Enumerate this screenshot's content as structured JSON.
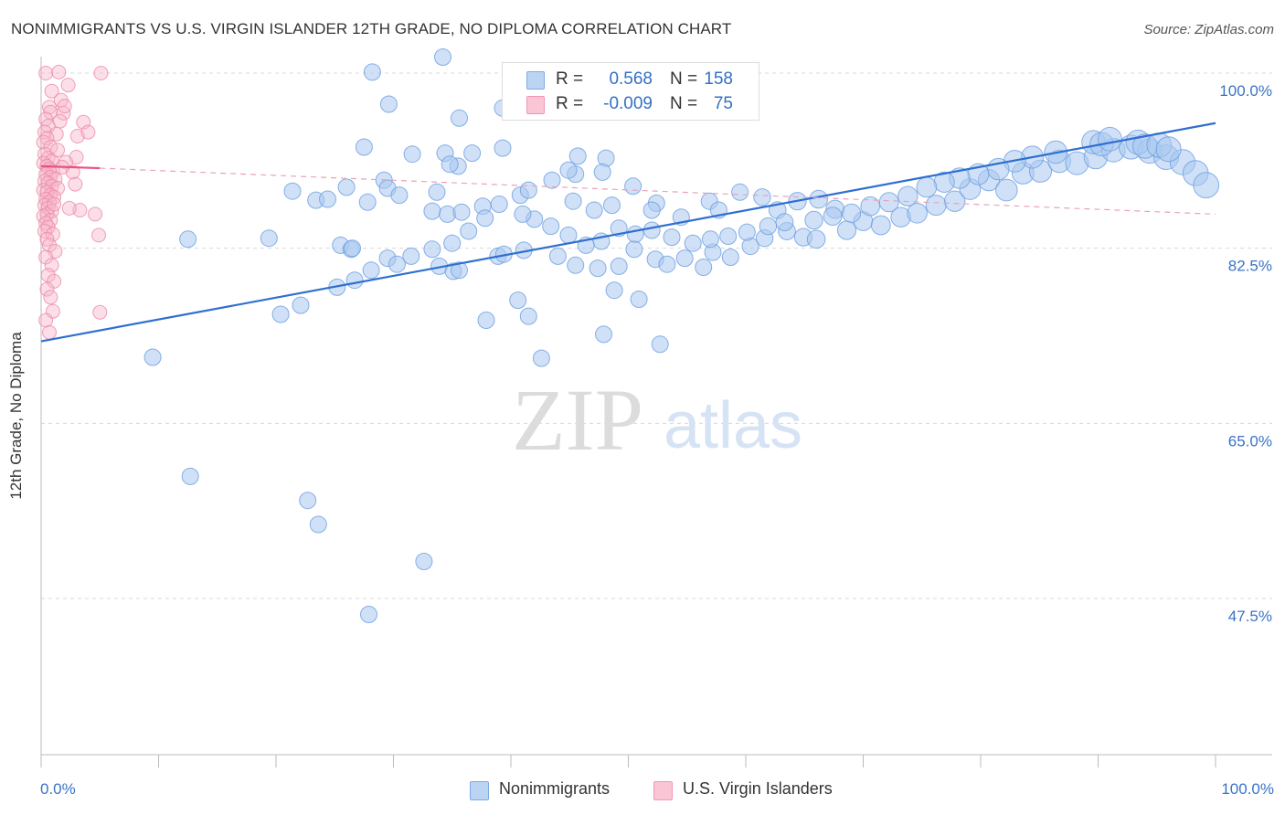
{
  "title": "NONIMMIGRANTS VS U.S. VIRGIN ISLANDER 12TH GRADE, NO DIPLOMA CORRELATION CHART",
  "source": "Source: ZipAtlas.com",
  "watermark": {
    "zip": "ZIP",
    "atlas": "atlas"
  },
  "legend": {
    "r_label": "R =",
    "n_label": "N =",
    "rows": [
      {
        "r": "0.568",
        "n": "158",
        "color": "#a9c8f0"
      },
      {
        "r": "-0.009",
        "n": "75",
        "color": "#f7b5c9"
      }
    ]
  },
  "chart_data": {
    "type": "scatter",
    "xlabel": "",
    "ylabel": "12th Grade, No Diploma",
    "x_range": [
      0,
      100
    ],
    "y_range": [
      32,
      101.5
    ],
    "x_tick_labels": [
      "0.0%",
      "100.0%"
    ],
    "y_ticks": [
      {
        "value": 100.0,
        "label": "100.0%"
      },
      {
        "value": 82.5,
        "label": "82.5%"
      },
      {
        "value": 65.0,
        "label": "65.0%"
      },
      {
        "value": 47.5,
        "label": "47.5%"
      }
    ],
    "grid": "horizontal dashed",
    "series": [
      {
        "name": "Nonimmigrants",
        "color": "#a9c8f0",
        "edge": "#6c9ee0",
        "trend": {
          "x": [
            0,
            100
          ],
          "y": [
            73.2,
            95.0
          ],
          "color": "#2f6fcf",
          "style": "solid"
        },
        "points": [
          [
            34.2,
            101.6
          ],
          [
            28.2,
            100.1
          ],
          [
            29.6,
            96.9
          ],
          [
            39.3,
            96.5
          ],
          [
            27.5,
            92.6
          ],
          [
            35.6,
            95.5
          ],
          [
            31.6,
            91.9
          ],
          [
            34.4,
            92.0
          ],
          [
            36.7,
            92.0
          ],
          [
            35.5,
            90.7
          ],
          [
            34.8,
            90.9
          ],
          [
            39.3,
            92.5
          ],
          [
            45.7,
            91.7
          ],
          [
            48.1,
            91.5
          ],
          [
            45.5,
            89.9
          ],
          [
            44.9,
            90.3
          ],
          [
            47.8,
            90.1
          ],
          [
            29.2,
            89.3
          ],
          [
            21.4,
            88.2
          ],
          [
            23.4,
            87.3
          ],
          [
            24.4,
            87.4
          ],
          [
            26.0,
            88.6
          ],
          [
            27.8,
            87.1
          ],
          [
            29.5,
            88.5
          ],
          [
            30.5,
            87.8
          ],
          [
            33.7,
            88.1
          ],
          [
            33.3,
            86.2
          ],
          [
            34.6,
            85.9
          ],
          [
            35.8,
            86.1
          ],
          [
            37.6,
            86.7
          ],
          [
            40.8,
            87.8
          ],
          [
            41.5,
            88.3
          ],
          [
            43.5,
            89.3
          ],
          [
            45.3,
            87.2
          ],
          [
            47.1,
            86.3
          ],
          [
            48.6,
            86.8
          ],
          [
            50.4,
            88.7
          ],
          [
            52.4,
            87.0
          ],
          [
            52.0,
            86.3
          ],
          [
            54.5,
            85.6
          ],
          [
            56.9,
            87.2
          ],
          [
            57.7,
            86.3
          ],
          [
            59.5,
            88.1
          ],
          [
            61.4,
            87.6
          ],
          [
            62.7,
            86.3
          ],
          [
            64.4,
            87.2
          ],
          [
            66.2,
            87.4
          ],
          [
            67.6,
            86.4
          ],
          [
            12.5,
            83.4
          ],
          [
            19.4,
            83.5
          ],
          [
            25.5,
            82.8
          ],
          [
            26.4,
            82.4
          ],
          [
            26.5,
            82.5
          ],
          [
            29.5,
            81.5
          ],
          [
            33.9,
            80.7
          ],
          [
            35.1,
            80.2
          ],
          [
            35.6,
            80.3
          ],
          [
            38.9,
            81.7
          ],
          [
            39.4,
            81.9
          ],
          [
            41.1,
            82.3
          ],
          [
            44.0,
            81.7
          ],
          [
            45.5,
            80.8
          ],
          [
            47.4,
            80.5
          ],
          [
            49.2,
            80.7
          ],
          [
            50.5,
            82.4
          ],
          [
            52.3,
            81.4
          ],
          [
            53.3,
            80.9
          ],
          [
            54.8,
            81.5
          ],
          [
            56.4,
            80.6
          ],
          [
            57.2,
            82.1
          ],
          [
            58.7,
            81.6
          ],
          [
            60.4,
            82.7
          ],
          [
            61.6,
            83.5
          ],
          [
            63.5,
            84.2
          ],
          [
            64.9,
            83.6
          ],
          [
            66.0,
            83.4
          ],
          [
            68.6,
            84.3
          ],
          [
            70.0,
            85.2
          ],
          [
            71.5,
            84.8
          ],
          [
            73.2,
            85.6
          ],
          [
            74.6,
            86.0
          ],
          [
            76.2,
            86.8
          ],
          [
            77.8,
            87.2
          ],
          [
            79.1,
            88.4
          ],
          [
            80.7,
            89.3
          ],
          [
            82.2,
            88.3
          ],
          [
            83.6,
            90.0
          ],
          [
            85.1,
            90.2
          ],
          [
            86.7,
            91.2
          ],
          [
            88.2,
            91.0
          ],
          [
            89.8,
            91.6
          ],
          [
            91.3,
            92.3
          ],
          [
            92.8,
            92.6
          ],
          [
            94.4,
            92.2
          ],
          [
            95.8,
            91.6
          ],
          [
            97.2,
            91.1
          ],
          [
            98.3,
            90.0
          ],
          [
            99.2,
            88.8
          ],
          [
            89.6,
            93.1
          ],
          [
            90.3,
            92.9
          ],
          [
            91.0,
            93.4
          ],
          [
            93.4,
            93.1
          ],
          [
            94.0,
            92.7
          ],
          [
            95.2,
            92.8
          ],
          [
            96.0,
            92.4
          ],
          [
            86.4,
            92.1
          ],
          [
            84.4,
            91.6
          ],
          [
            82.9,
            91.2
          ],
          [
            81.5,
            90.4
          ],
          [
            79.8,
            89.9
          ],
          [
            78.2,
            89.5
          ],
          [
            76.9,
            89.1
          ],
          [
            75.4,
            88.6
          ],
          [
            73.8,
            87.7
          ],
          [
            72.2,
            87.1
          ],
          [
            70.6,
            86.7
          ],
          [
            69.0,
            86.0
          ],
          [
            67.4,
            85.7
          ],
          [
            65.8,
            85.3
          ],
          [
            63.3,
            85.1
          ],
          [
            61.9,
            84.7
          ],
          [
            60.1,
            84.1
          ],
          [
            58.5,
            83.7
          ],
          [
            57.0,
            83.4
          ],
          [
            55.5,
            83.0
          ],
          [
            53.7,
            83.6
          ],
          [
            52.0,
            84.3
          ],
          [
            50.6,
            83.9
          ],
          [
            49.2,
            84.5
          ],
          [
            47.7,
            83.2
          ],
          [
            46.4,
            82.8
          ],
          [
            44.9,
            83.8
          ],
          [
            43.4,
            84.7
          ],
          [
            42.0,
            85.4
          ],
          [
            41.0,
            85.9
          ],
          [
            39.0,
            86.9
          ],
          [
            37.8,
            85.5
          ],
          [
            36.4,
            84.2
          ],
          [
            35.0,
            83.0
          ],
          [
            33.3,
            82.4
          ],
          [
            31.5,
            81.7
          ],
          [
            30.3,
            80.9
          ],
          [
            28.1,
            80.3
          ],
          [
            26.7,
            79.3
          ],
          [
            25.2,
            78.6
          ],
          [
            22.1,
            76.8
          ],
          [
            20.4,
            75.9
          ],
          [
            9.5,
            71.6
          ],
          [
            12.7,
            59.7
          ],
          [
            22.7,
            57.3
          ],
          [
            23.6,
            54.9
          ],
          [
            32.6,
            51.2
          ],
          [
            27.9,
            45.9
          ],
          [
            41.5,
            75.7
          ],
          [
            42.6,
            71.5
          ],
          [
            50.9,
            77.4
          ],
          [
            52.7,
            72.9
          ],
          [
            47.9,
            73.9
          ],
          [
            37.9,
            75.3
          ],
          [
            40.6,
            77.3
          ],
          [
            48.8,
            78.3
          ]
        ]
      },
      {
        "name": "U.S. Virgin Islanders",
        "color": "#f7b5c9",
        "edge": "#ee8aa8",
        "trend": {
          "x": [
            0,
            5
          ],
          "y": [
            90.7,
            90.5
          ],
          "color": "#e75484",
          "style": "solid"
        },
        "trend_ext": {
          "x": [
            5,
            100
          ],
          "y": [
            90.5,
            85.9
          ],
          "color": "#e8a2ba",
          "style": "dashed"
        },
        "points": [
          [
            0.4,
            100.0
          ],
          [
            1.5,
            100.1
          ],
          [
            5.1,
            100.0
          ],
          [
            0.9,
            98.2
          ],
          [
            2.3,
            98.8
          ],
          [
            1.7,
            97.3
          ],
          [
            0.7,
            96.6
          ],
          [
            0.8,
            96.1
          ],
          [
            1.9,
            96.0
          ],
          [
            0.4,
            95.4
          ],
          [
            1.6,
            95.2
          ],
          [
            0.6,
            94.7
          ],
          [
            0.3,
            94.1
          ],
          [
            1.3,
            93.9
          ],
          [
            0.5,
            93.5
          ],
          [
            0.2,
            93.1
          ],
          [
            0.8,
            92.6
          ],
          [
            1.4,
            92.3
          ],
          [
            0.3,
            91.9
          ],
          [
            0.6,
            91.5
          ],
          [
            0.9,
            91.2
          ],
          [
            0.2,
            91.0
          ],
          [
            0.5,
            90.7
          ],
          [
            0.7,
            90.4
          ],
          [
            1.0,
            90.2
          ],
          [
            0.4,
            89.9
          ],
          [
            0.8,
            89.6
          ],
          [
            1.2,
            89.4
          ],
          [
            0.3,
            89.2
          ],
          [
            0.6,
            89.0
          ],
          [
            0.9,
            88.7
          ],
          [
            1.4,
            88.5
          ],
          [
            0.2,
            88.3
          ],
          [
            0.5,
            88.1
          ],
          [
            0.8,
            87.8
          ],
          [
            1.1,
            87.6
          ],
          [
            0.4,
            87.4
          ],
          [
            0.7,
            87.1
          ],
          [
            0.3,
            86.8
          ],
          [
            0.6,
            86.5
          ],
          [
            0.9,
            86.2
          ],
          [
            0.5,
            85.9
          ],
          [
            0.2,
            85.7
          ],
          [
            0.8,
            85.3
          ],
          [
            0.4,
            85.0
          ],
          [
            0.6,
            84.6
          ],
          [
            0.3,
            84.2
          ],
          [
            1.0,
            83.9
          ],
          [
            0.5,
            83.4
          ],
          [
            0.7,
            82.8
          ],
          [
            1.2,
            82.2
          ],
          [
            0.4,
            81.6
          ],
          [
            0.9,
            80.8
          ],
          [
            0.6,
            79.8
          ],
          [
            1.1,
            79.2
          ],
          [
            0.5,
            78.4
          ],
          [
            0.8,
            77.6
          ],
          [
            1.0,
            76.2
          ],
          [
            0.4,
            75.3
          ],
          [
            3.1,
            93.7
          ],
          [
            3.6,
            95.1
          ],
          [
            4.0,
            94.1
          ],
          [
            3.0,
            91.6
          ],
          [
            2.7,
            90.1
          ],
          [
            2.9,
            88.9
          ],
          [
            3.3,
            86.3
          ],
          [
            4.6,
            85.9
          ],
          [
            2.4,
            86.5
          ],
          [
            2.1,
            91.1
          ],
          [
            1.8,
            90.6
          ],
          [
            0.7,
            74.1
          ],
          [
            2.0,
            96.7
          ],
          [
            5.0,
            76.1
          ],
          [
            4.9,
            83.8
          ],
          [
            1.1,
            86.9
          ]
        ]
      }
    ]
  }
}
